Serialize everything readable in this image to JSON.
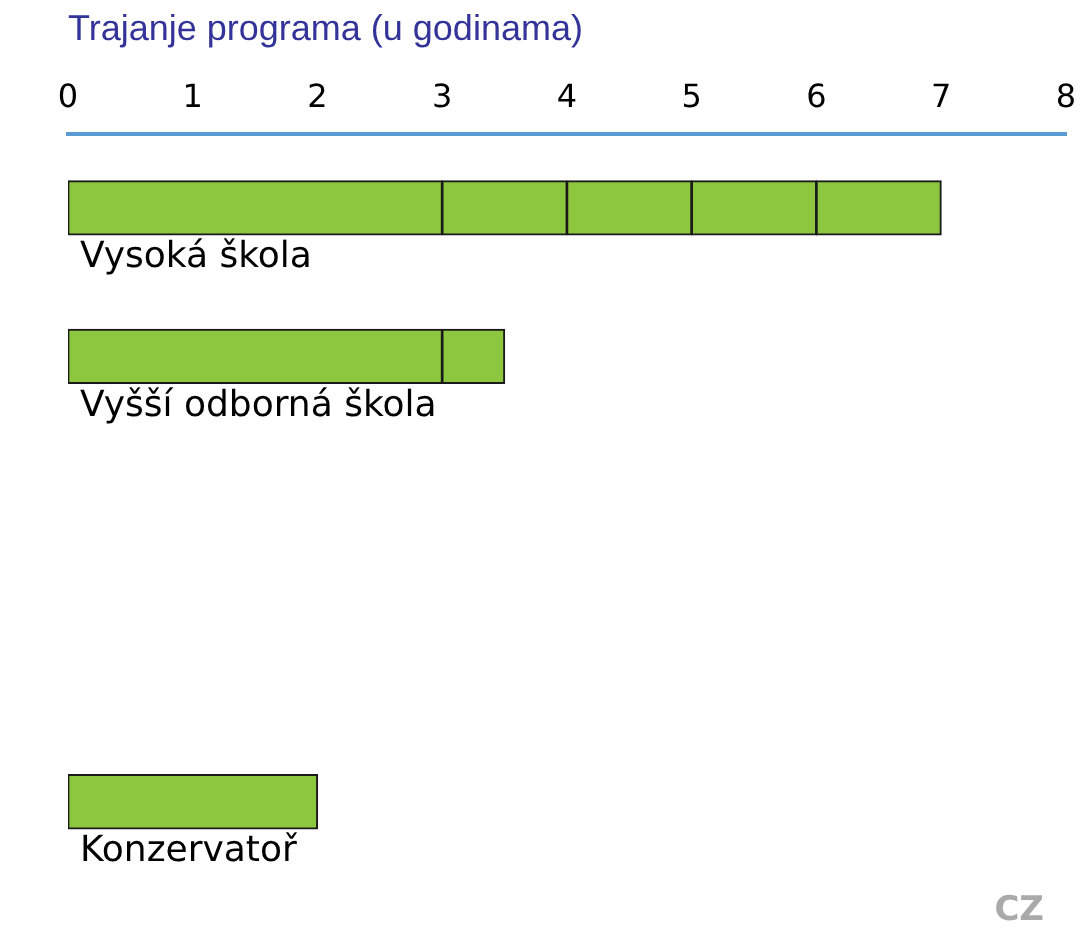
{
  "chart_data": {
    "type": "bar",
    "orientation": "horizontal",
    "stacked": true,
    "xlabel": "Trajanje programa (u godinama)",
    "categories": [
      "Vysoká škola",
      "Vyšší odborná škola",
      null,
      null,
      "Konzervatoř"
    ],
    "series": [
      {
        "color": "#8dc63f",
        "values": [
          3,
          3,
          null,
          null,
          2
        ]
      },
      {
        "color": "#8dc63f",
        "values": [
          1,
          0.5,
          null,
          null,
          null
        ]
      },
      {
        "color": "#8dc63f",
        "values": [
          1,
          null,
          null,
          null,
          null
        ]
      },
      {
        "color": "#8dc63f",
        "values": [
          1,
          null,
          null,
          null,
          null
        ]
      },
      {
        "color": "#8dc63f",
        "values": [
          1,
          null,
          null,
          null,
          null
        ]
      }
    ],
    "xlim": [
      0,
      8
    ],
    "xticks": [
      0,
      1,
      2,
      3,
      4,
      5,
      6,
      7,
      8
    ],
    "grid": false,
    "legend": false,
    "annotations": [
      "CZ"
    ]
  }
}
